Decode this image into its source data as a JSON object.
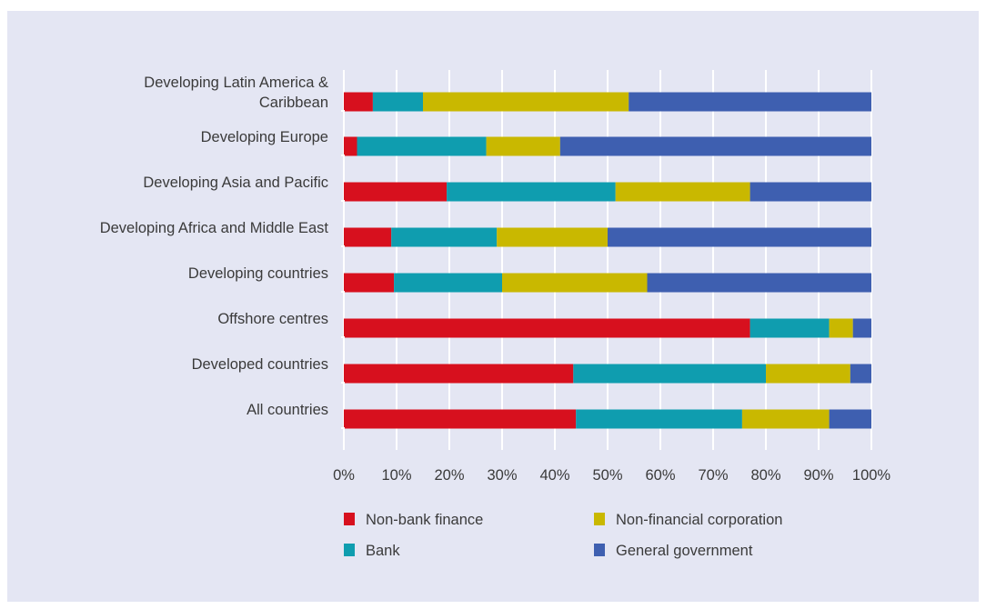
{
  "chart_data": {
    "type": "bar",
    "orientation": "horizontal",
    "stacked": true,
    "title": "",
    "xlabel": "",
    "ylabel": "",
    "categories": [
      "Developing Latin America & Caribbean",
      "Developing Europe",
      "Developing Asia and Pacific",
      "Developing Africa and Middle East",
      "Developing countries",
      "Offshore centres",
      "Developed countries",
      "All countries"
    ],
    "category_lines": [
      [
        "Developing Latin America &",
        "Caribbean"
      ],
      [
        "Developing Europe"
      ],
      [
        "Developing Asia and Pacific"
      ],
      [
        "Developing Africa and Middle East"
      ],
      [
        "Developing countries"
      ],
      [
        "Offshore centres"
      ],
      [
        "Developed countries"
      ],
      [
        "All countries"
      ]
    ],
    "series": [
      {
        "name": "Non-bank finance",
        "color": "#d7101e",
        "values": [
          5.5,
          2.5,
          19.5,
          9,
          9.5,
          77,
          43.5,
          44
        ]
      },
      {
        "name": "Bank",
        "color": "#0f9daf",
        "values": [
          9.5,
          24.5,
          32,
          20,
          20.5,
          15,
          36.5,
          31.5
        ]
      },
      {
        "name": "Non-financial corporation",
        "color": "#c9b800",
        "values": [
          39,
          14,
          25.5,
          21,
          27.5,
          4.5,
          16,
          16.5
        ]
      },
      {
        "name": "General government",
        "color": "#3e5fb0",
        "values": [
          46,
          59,
          23,
          50,
          42.5,
          3.5,
          4,
          8
        ]
      }
    ],
    "xlim": [
      0,
      100
    ],
    "xticks": [
      "0%",
      "10%",
      "20%",
      "30%",
      "40%",
      "50%",
      "60%",
      "70%",
      "80%",
      "90%",
      "100%"
    ],
    "grid": "vertical",
    "legend_position": "bottom"
  }
}
